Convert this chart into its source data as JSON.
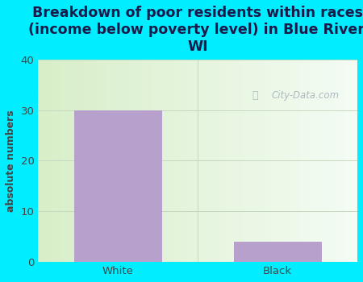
{
  "categories": [
    "White",
    "Black"
  ],
  "values": [
    30,
    4
  ],
  "bar_color": "#b8a0cc",
  "title": "Breakdown of poor residents within races\n(income below poverty level) in Blue River,\nWI",
  "ylabel": "absolute numbers",
  "ylim": [
    0,
    40
  ],
  "yticks": [
    0,
    10,
    20,
    30,
    40
  ],
  "background_color": "#00eeff",
  "title_color": "#1a1a4a",
  "axis_color": "#444444",
  "grid_color": "#c8d8c0",
  "watermark_text": "City-Data.com",
  "title_fontsize": 12.5,
  "ylabel_fontsize": 9,
  "tick_fontsize": 9.5
}
